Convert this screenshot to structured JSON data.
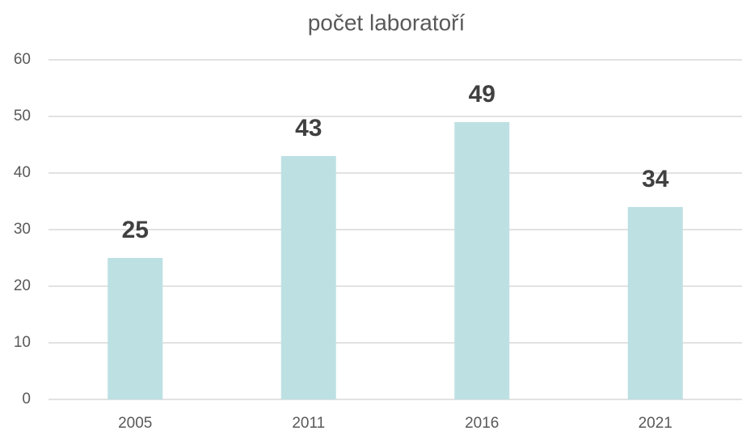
{
  "chart_data": {
    "type": "bar",
    "title": "počet laboratoří",
    "categories": [
      "2005",
      "2011",
      "2016",
      "2021"
    ],
    "values": [
      25,
      43,
      49,
      34
    ],
    "color": "#bde0e3",
    "ylim": [
      0,
      60
    ],
    "yticks": [
      0,
      10,
      20,
      30,
      40,
      50,
      60
    ],
    "grid": true
  }
}
